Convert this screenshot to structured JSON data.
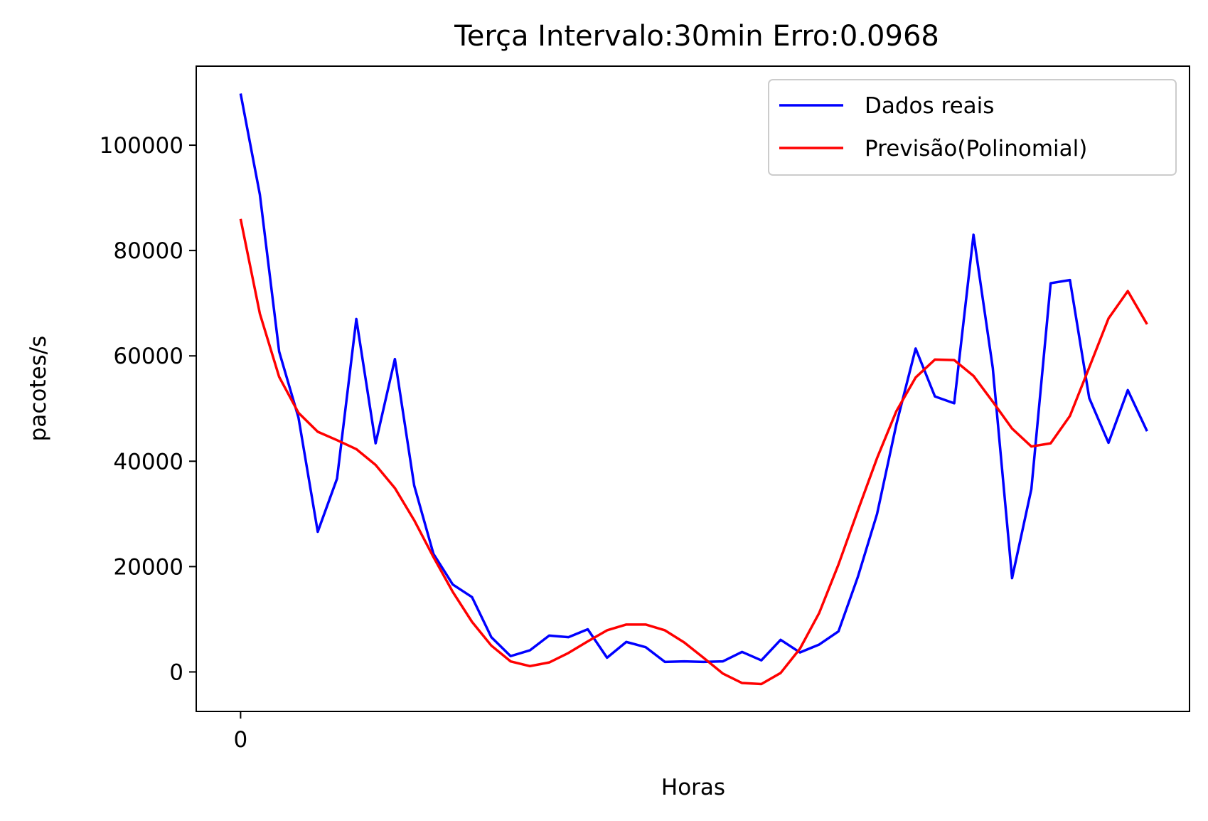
{
  "chart_data": {
    "type": "line",
    "title": "Terça Intervalo:30min Erro:0.0968",
    "xlabel": "Horas",
    "ylabel": "pacotes/s",
    "x_ticks": [
      0
    ],
    "y_ticks": [
      0,
      20000,
      40000,
      60000,
      80000,
      100000
    ],
    "xlim": [
      -2.3,
      49.2
    ],
    "ylim": [
      -7500,
      115000
    ],
    "grid": false,
    "legend_position": "top-right",
    "series": [
      {
        "name": "Dados reais",
        "color": "#0000ff",
        "x": [
          0,
          1,
          2,
          3,
          4,
          5,
          6,
          7,
          8,
          9,
          10,
          11,
          12,
          13,
          14,
          15,
          16,
          17,
          18,
          19,
          20,
          21,
          22,
          23,
          24,
          25,
          26,
          27,
          28,
          29,
          30,
          31,
          32,
          33,
          34,
          35,
          36,
          37,
          38,
          39,
          40,
          41,
          42,
          43,
          44,
          45,
          46,
          47
        ],
        "values": [
          109800,
          90600,
          60800,
          48300,
          26600,
          36700,
          67000,
          43400,
          59400,
          35400,
          22400,
          16600,
          14200,
          6600,
          3000,
          4100,
          6900,
          6600,
          8100,
          2700,
          5700,
          4700,
          1900,
          2000,
          1900,
          2000,
          3800,
          2200,
          6100,
          3700,
          5200,
          7700,
          18000,
          30000,
          47000,
          61400,
          52300,
          51000,
          83000,
          57700,
          17800,
          34700,
          73800,
          74400,
          52000,
          43500,
          53500,
          45700
        ]
      },
      {
        "name": "Previsão(Polinomial)",
        "color": "#ff0000",
        "x": [
          0,
          1,
          2,
          3,
          4,
          5,
          6,
          7,
          8,
          9,
          10,
          11,
          12,
          13,
          14,
          15,
          16,
          17,
          18,
          19,
          20,
          21,
          22,
          23,
          24,
          25,
          26,
          27,
          28,
          29,
          30,
          31,
          32,
          33,
          34,
          35,
          36,
          37,
          38,
          39,
          40,
          41,
          42,
          43,
          44,
          45,
          46,
          47
        ],
        "values": [
          86000,
          68000,
          56000,
          49200,
          45600,
          44000,
          42300,
          39300,
          34900,
          28800,
          21800,
          15200,
          9500,
          5000,
          2000,
          1100,
          1800,
          3600,
          5800,
          7900,
          9000,
          9000,
          7900,
          5600,
          2700,
          -300,
          -2100,
          -2300,
          -200,
          4400,
          11200,
          20400,
          30600,
          40600,
          49500,
          55900,
          59300,
          59200,
          56200,
          51300,
          46200,
          42800,
          43400,
          48600,
          57800,
          67100,
          72300,
          66000
        ]
      }
    ]
  }
}
